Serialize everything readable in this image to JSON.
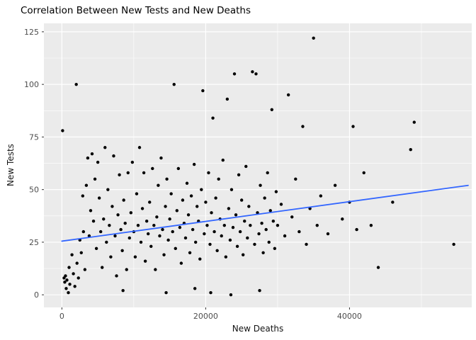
{
  "chart_data": {
    "type": "scatter",
    "title": "Correlation Between New Tests and New Deaths",
    "xlabel": "New Deaths",
    "ylabel": "New Tests",
    "xlim": [
      -2500,
      57000
    ],
    "ylim": [
      -6,
      129
    ],
    "x_ticks": [
      0,
      20000,
      40000
    ],
    "y_ticks": [
      0,
      25,
      50,
      75,
      100,
      125
    ],
    "x_minor_ticks": [
      10000,
      30000,
      50000
    ],
    "y_minor_ticks": [
      12.5,
      37.5,
      62.5,
      87.5,
      112.5
    ],
    "grid": true,
    "legend": "none",
    "panel_bg": "#EBEBEB",
    "grid_color": "#FFFFFF",
    "tick_color": "#333333",
    "tick_text_color": "#4D4D4D",
    "point_color": "#000000",
    "trend_color": "#3366FF",
    "trendline": {
      "type": "linear",
      "x": [
        0,
        56500
      ],
      "y": [
        25.5,
        52
      ]
    },
    "points": [
      [
        100,
        78
      ],
      [
        300,
        8
      ],
      [
        400,
        6
      ],
      [
        500,
        9
      ],
      [
        600,
        3
      ],
      [
        700,
        7
      ],
      [
        900,
        1
      ],
      [
        1000,
        13
      ],
      [
        1100,
        5
      ],
      [
        1400,
        19
      ],
      [
        1600,
        10
      ],
      [
        1800,
        4
      ],
      [
        2000,
        100
      ],
      [
        2100,
        15
      ],
      [
        2300,
        8
      ],
      [
        2500,
        26
      ],
      [
        2700,
        20
      ],
      [
        2900,
        47
      ],
      [
        3000,
        30
      ],
      [
        3200,
        12
      ],
      [
        3400,
        52
      ],
      [
        3600,
        65
      ],
      [
        3800,
        28
      ],
      [
        4000,
        40
      ],
      [
        4200,
        67
      ],
      [
        4400,
        35
      ],
      [
        4600,
        55
      ],
      [
        4800,
        22
      ],
      [
        5000,
        63
      ],
      [
        5200,
        46
      ],
      [
        5400,
        30
      ],
      [
        5600,
        13
      ],
      [
        5800,
        36
      ],
      [
        6000,
        70
      ],
      [
        6200,
        25
      ],
      [
        6400,
        50
      ],
      [
        6600,
        33
      ],
      [
        6800,
        18
      ],
      [
        7000,
        42
      ],
      [
        7200,
        66
      ],
      [
        7400,
        28
      ],
      [
        7600,
        9
      ],
      [
        7800,
        38
      ],
      [
        8000,
        57
      ],
      [
        8200,
        31
      ],
      [
        8400,
        21
      ],
      [
        8600,
        45
      ],
      [
        8800,
        34
      ],
      [
        9000,
        12
      ],
      [
        9200,
        58
      ],
      [
        9400,
        27
      ],
      [
        9600,
        39
      ],
      [
        9800,
        63
      ],
      [
        10000,
        30
      ],
      [
        10200,
        18
      ],
      [
        10400,
        48
      ],
      [
        10600,
        33
      ],
      [
        10800,
        70
      ],
      [
        11000,
        25
      ],
      [
        11200,
        41
      ],
      [
        11400,
        58
      ],
      [
        11600,
        16
      ],
      [
        11800,
        35
      ],
      [
        12000,
        29
      ],
      [
        12200,
        44
      ],
      [
        12400,
        23
      ],
      [
        12600,
        60
      ],
      [
        12800,
        33
      ],
      [
        13000,
        12
      ],
      [
        13200,
        37
      ],
      [
        13400,
        52
      ],
      [
        13600,
        28
      ],
      [
        13800,
        65
      ],
      [
        14000,
        31
      ],
      [
        14200,
        19
      ],
      [
        14400,
        42
      ],
      [
        14600,
        55
      ],
      [
        14800,
        26
      ],
      [
        15000,
        36
      ],
      [
        15200,
        48
      ],
      [
        15400,
        30
      ],
      [
        15600,
        100
      ],
      [
        15800,
        22
      ],
      [
        16000,
        40
      ],
      [
        16200,
        60
      ],
      [
        16400,
        32
      ],
      [
        16600,
        15
      ],
      [
        16800,
        45
      ],
      [
        17000,
        34
      ],
      [
        17200,
        27
      ],
      [
        17400,
        53
      ],
      [
        17600,
        38
      ],
      [
        17800,
        20
      ],
      [
        18000,
        47
      ],
      [
        18200,
        31
      ],
      [
        18400,
        62
      ],
      [
        18600,
        25
      ],
      [
        18800,
        42
      ],
      [
        19000,
        35
      ],
      [
        19200,
        17
      ],
      [
        19400,
        50
      ],
      [
        19600,
        97
      ],
      [
        19800,
        29
      ],
      [
        20000,
        44
      ],
      [
        20200,
        33
      ],
      [
        20400,
        58
      ],
      [
        20600,
        24
      ],
      [
        20800,
        39
      ],
      [
        21000,
        84
      ],
      [
        21200,
        30
      ],
      [
        21400,
        46
      ],
      [
        21600,
        21
      ],
      [
        21800,
        55
      ],
      [
        22000,
        36
      ],
      [
        22200,
        28
      ],
      [
        22400,
        64
      ],
      [
        22600,
        33
      ],
      [
        22800,
        18
      ],
      [
        23000,
        93
      ],
      [
        23200,
        41
      ],
      [
        23400,
        26
      ],
      [
        23600,
        50
      ],
      [
        23800,
        32
      ],
      [
        24000,
        105
      ],
      [
        24200,
        38
      ],
      [
        24400,
        23
      ],
      [
        24600,
        57
      ],
      [
        24800,
        30
      ],
      [
        25000,
        45
      ],
      [
        25200,
        19
      ],
      [
        25400,
        35
      ],
      [
        25600,
        61
      ],
      [
        25800,
        27
      ],
      [
        26000,
        42
      ],
      [
        26200,
        33
      ],
      [
        26500,
        106
      ],
      [
        26800,
        24
      ],
      [
        27000,
        105
      ],
      [
        27200,
        39
      ],
      [
        27400,
        29
      ],
      [
        27600,
        52
      ],
      [
        27800,
        34
      ],
      [
        28000,
        20
      ],
      [
        28200,
        46
      ],
      [
        28400,
        31
      ],
      [
        28600,
        58
      ],
      [
        28800,
        25
      ],
      [
        29000,
        40
      ],
      [
        29200,
        88
      ],
      [
        29400,
        35
      ],
      [
        29600,
        22
      ],
      [
        29800,
        49
      ],
      [
        30000,
        33
      ],
      [
        30500,
        43
      ],
      [
        31000,
        28
      ],
      [
        31500,
        95
      ],
      [
        32000,
        37
      ],
      [
        32500,
        55
      ],
      [
        33000,
        30
      ],
      [
        33500,
        80
      ],
      [
        34000,
        24
      ],
      [
        34500,
        41
      ],
      [
        35000,
        122
      ],
      [
        35500,
        33
      ],
      [
        36000,
        47
      ],
      [
        37000,
        29
      ],
      [
        38000,
        52
      ],
      [
        39000,
        36
      ],
      [
        40000,
        44
      ],
      [
        40500,
        80
      ],
      [
        41000,
        31
      ],
      [
        42000,
        58
      ],
      [
        43000,
        33
      ],
      [
        44000,
        13
      ],
      [
        46000,
        44
      ],
      [
        48500,
        69
      ],
      [
        49000,
        82
      ],
      [
        54500,
        24
      ],
      [
        8500,
        2
      ],
      [
        14500,
        1
      ],
      [
        18500,
        3
      ],
      [
        23500,
        0
      ],
      [
        27500,
        2
      ],
      [
        20700,
        1
      ]
    ]
  }
}
